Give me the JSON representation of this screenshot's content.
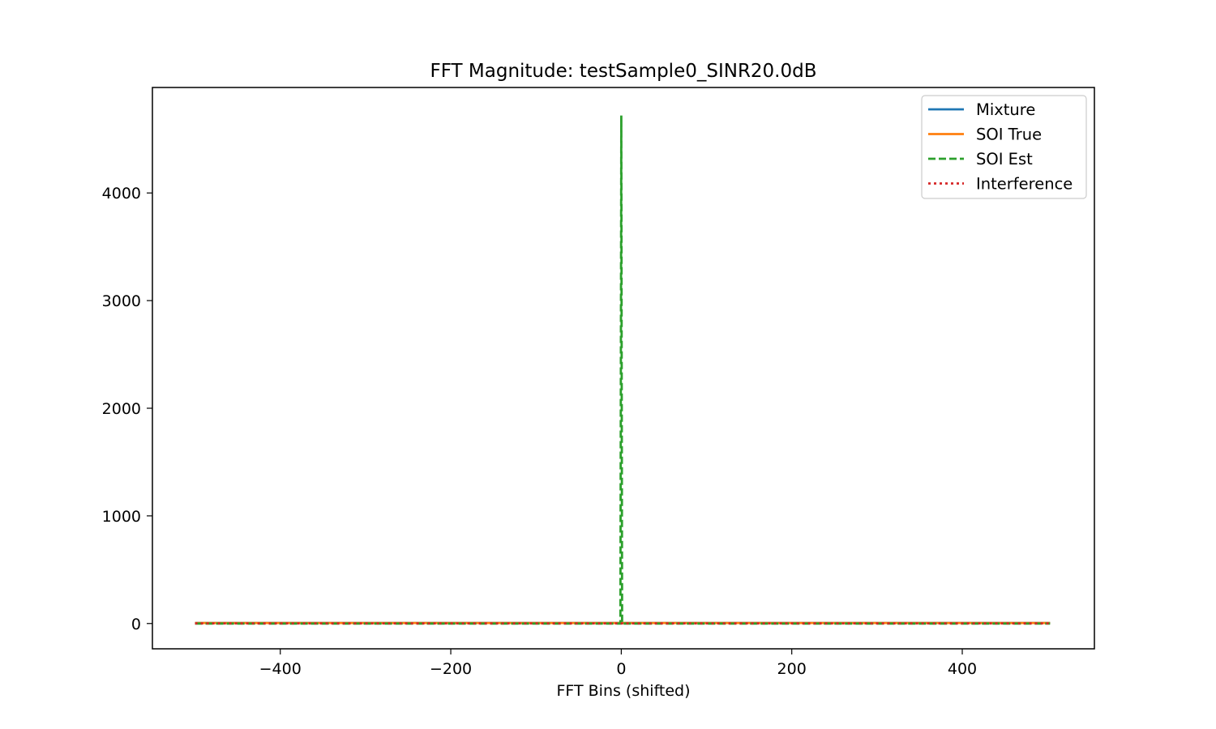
{
  "chart_data": {
    "type": "line",
    "title": "FFT Magnitude: testSample0_SINR20.0dB",
    "xlabel": "FFT Bins (shifted)",
    "ylabel": "",
    "xlim": [
      -550,
      555
    ],
    "ylim": [
      -235,
      4980
    ],
    "xticks": [
      -400,
      -200,
      0,
      200,
      400
    ],
    "xtick_labels": [
      "−400",
      "−200",
      "0",
      "200",
      "400"
    ],
    "yticks": [
      0,
      1000,
      2000,
      3000,
      4000
    ],
    "ytick_labels": [
      "0",
      "1000",
      "2000",
      "3000",
      "4000"
    ],
    "grid": false,
    "legend_position": "top-right",
    "series": [
      {
        "name": "Mixture",
        "color": "#1f77b4",
        "style": "solid",
        "x": [
          -500,
          -1,
          0,
          1,
          503
        ],
        "y": [
          5,
          5,
          5,
          5,
          5
        ]
      },
      {
        "name": "SOI True",
        "color": "#ff7f0e",
        "style": "solid",
        "x": [
          -500,
          -1,
          0,
          1,
          503
        ],
        "y": [
          5,
          5,
          5,
          5,
          5
        ]
      },
      {
        "name": "SOI Est",
        "color": "#2ca02c",
        "style": "dashed",
        "x": [
          -500,
          -1,
          0,
          1,
          503
        ],
        "y": [
          0,
          0,
          4720,
          0,
          0
        ]
      },
      {
        "name": "Interference",
        "color": "#d62728",
        "style": "dotted",
        "x": [
          -500,
          -1,
          0,
          1,
          503
        ],
        "y": [
          1,
          1,
          1,
          1,
          1
        ]
      }
    ]
  }
}
